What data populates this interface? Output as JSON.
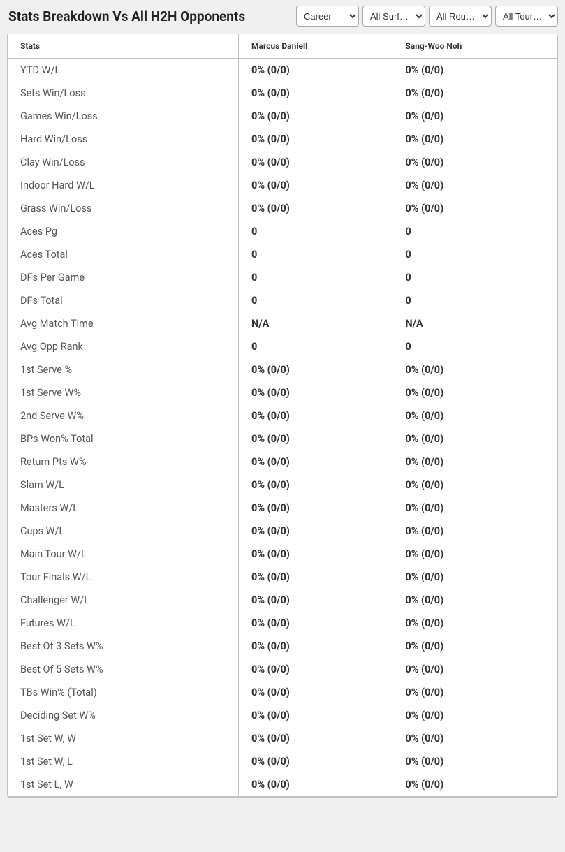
{
  "title": "Stats Breakdown Vs All H2H Opponents",
  "filters": {
    "period": "Career",
    "surface": "All Surf…",
    "round": "All Rou…",
    "tour": "All Tour…"
  },
  "columns": {
    "stats": "Stats",
    "p1": "Marcus Daniell",
    "p2": "Sang-Woo Noh"
  },
  "rows": [
    {
      "label": "YTD W/L",
      "p1": "0% (0/0)",
      "p2": "0% (0/0)"
    },
    {
      "label": "Sets Win/Loss",
      "p1": "0% (0/0)",
      "p2": "0% (0/0)"
    },
    {
      "label": "Games Win/Loss",
      "p1": "0% (0/0)",
      "p2": "0% (0/0)"
    },
    {
      "label": "Hard Win/Loss",
      "p1": "0% (0/0)",
      "p2": "0% (0/0)"
    },
    {
      "label": "Clay Win/Loss",
      "p1": "0% (0/0)",
      "p2": "0% (0/0)"
    },
    {
      "label": "Indoor Hard W/L",
      "p1": "0% (0/0)",
      "p2": "0% (0/0)"
    },
    {
      "label": "Grass Win/Loss",
      "p1": "0% (0/0)",
      "p2": "0% (0/0)"
    },
    {
      "label": "Aces Pg",
      "p1": "0",
      "p2": "0"
    },
    {
      "label": "Aces Total",
      "p1": "0",
      "p2": "0"
    },
    {
      "label": "DFs Per Game",
      "p1": "0",
      "p2": "0"
    },
    {
      "label": "DFs Total",
      "p1": "0",
      "p2": "0"
    },
    {
      "label": "Avg Match Time",
      "p1": "N/A",
      "p2": "N/A"
    },
    {
      "label": "Avg Opp Rank",
      "p1": "0",
      "p2": "0"
    },
    {
      "label": "1st Serve %",
      "p1": "0% (0/0)",
      "p2": "0% (0/0)"
    },
    {
      "label": "1st Serve W%",
      "p1": "0% (0/0)",
      "p2": "0% (0/0)"
    },
    {
      "label": "2nd Serve W%",
      "p1": "0% (0/0)",
      "p2": "0% (0/0)"
    },
    {
      "label": "BPs Won% Total",
      "p1": "0% (0/0)",
      "p2": "0% (0/0)"
    },
    {
      "label": "Return Pts W%",
      "p1": "0% (0/0)",
      "p2": "0% (0/0)"
    },
    {
      "label": "Slam W/L",
      "p1": "0% (0/0)",
      "p2": "0% (0/0)"
    },
    {
      "label": "Masters W/L",
      "p1": "0% (0/0)",
      "p2": "0% (0/0)"
    },
    {
      "label": "Cups W/L",
      "p1": "0% (0/0)",
      "p2": "0% (0/0)"
    },
    {
      "label": "Main Tour W/L",
      "p1": "0% (0/0)",
      "p2": "0% (0/0)"
    },
    {
      "label": "Tour Finals W/L",
      "p1": "0% (0/0)",
      "p2": "0% (0/0)"
    },
    {
      "label": "Challenger W/L",
      "p1": "0% (0/0)",
      "p2": "0% (0/0)"
    },
    {
      "label": "Futures W/L",
      "p1": "0% (0/0)",
      "p2": "0% (0/0)"
    },
    {
      "label": "Best Of 3 Sets W%",
      "p1": "0% (0/0)",
      "p2": "0% (0/0)"
    },
    {
      "label": "Best Of 5 Sets W%",
      "p1": "0% (0/0)",
      "p2": "0% (0/0)"
    },
    {
      "label": "TBs Win% (Total)",
      "p1": "0% (0/0)",
      "p2": "0% (0/0)"
    },
    {
      "label": "Deciding Set W%",
      "p1": "0% (0/0)",
      "p2": "0% (0/0)"
    },
    {
      "label": "1st Set W, W",
      "p1": "0% (0/0)",
      "p2": "0% (0/0)"
    },
    {
      "label": "1st Set W, L",
      "p1": "0% (0/0)",
      "p2": "0% (0/0)"
    },
    {
      "label": "1st Set L, W",
      "p1": "0% (0/0)",
      "p2": "0% (0/0)"
    }
  ],
  "styling": {
    "page_background": "#f0f0f0",
    "table_background": "#ffffff",
    "table_border": "#c0c0c0",
    "header_text_color": "#333333",
    "label_text_color": "#555555",
    "value_text_color": "#333333",
    "title_fontsize": 19,
    "header_fontsize": 12,
    "cell_fontsize": 14.5,
    "col_widths": {
      "stats": "42%",
      "p1": "28%",
      "p2": "30%"
    }
  }
}
